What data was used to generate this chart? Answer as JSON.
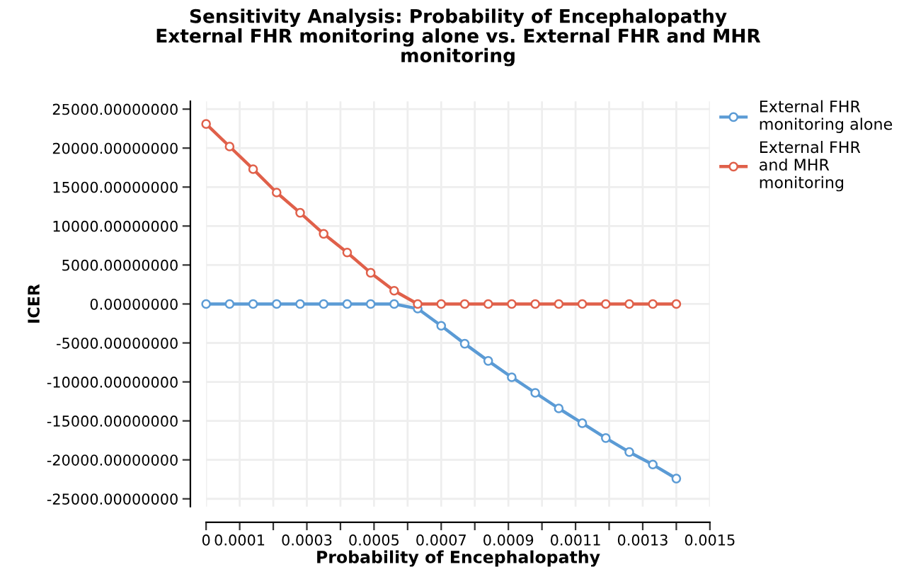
{
  "chart_data": {
    "type": "line",
    "title": "Sensitivity Analysis: Probability of Encephalopathy\nExternal FHR monitoring alone vs. External FHR and MHR\nmonitoring",
    "xlabel": "Probability of Encephalopathy",
    "ylabel": "ICER",
    "x": [
      0,
      7e-05,
      0.00014,
      0.00021,
      0.00028,
      0.00035,
      0.00042,
      0.00049,
      0.00056,
      0.00063,
      0.0007,
      0.00077,
      0.00084,
      0.00091,
      0.00098,
      0.00105,
      0.00112,
      0.00119,
      0.00126,
      0.00133,
      0.0014
    ],
    "series": [
      {
        "name": "External FHR\nmonitoring alone",
        "color": "#5b9bd5",
        "values": [
          0,
          0,
          0,
          0,
          0,
          0,
          0,
          0,
          0,
          -600,
          -2800,
          -5100,
          -7300,
          -9400,
          -11400,
          -13400,
          -15300,
          -17200,
          -19000,
          -20600,
          -22400
        ]
      },
      {
        "name": "External FHR\nand MHR\nmonitoring",
        "color": "#e0604a",
        "values": [
          23100,
          20200,
          17300,
          14300,
          11700,
          9000,
          6600,
          4000,
          1700,
          0,
          0,
          0,
          0,
          0,
          0,
          0,
          0,
          0,
          0,
          0,
          0
        ]
      }
    ],
    "xlim": [
      0,
      0.0015
    ],
    "xticks": [
      {
        "value": 0,
        "label": "0"
      },
      {
        "value": 0.0001,
        "label": "0.0001"
      },
      {
        "value": 0.0002,
        "label": null
      },
      {
        "value": 0.0003,
        "label": "0.0003"
      },
      {
        "value": 0.0004,
        "label": null
      },
      {
        "value": 0.0005,
        "label": "0.0005"
      },
      {
        "value": 0.0006,
        "label": null
      },
      {
        "value": 0.0007,
        "label": "0.0007"
      },
      {
        "value": 0.0008,
        "label": null
      },
      {
        "value": 0.0009,
        "label": "0.0009"
      },
      {
        "value": 0.001,
        "label": null
      },
      {
        "value": 0.0011,
        "label": "0.0011"
      },
      {
        "value": 0.0012,
        "label": null
      },
      {
        "value": 0.0013,
        "label": "0.0013"
      },
      {
        "value": 0.0014,
        "label": null
      },
      {
        "value": 0.0015,
        "label": "0.0015"
      }
    ],
    "ylim": [
      -26000,
      26000
    ],
    "yticks": [
      {
        "value": 25000,
        "label": "25000.00000000"
      },
      {
        "value": 20000,
        "label": "20000.00000000"
      },
      {
        "value": 15000,
        "label": "15000.00000000"
      },
      {
        "value": 10000,
        "label": "10000.00000000"
      },
      {
        "value": 5000,
        "label": "5000.00000000"
      },
      {
        "value": 0,
        "label": "0.00000000"
      },
      {
        "value": -5000,
        "label": "-5000.00000000"
      },
      {
        "value": -10000,
        "label": "-10000.00000000"
      },
      {
        "value": -15000,
        "label": "-15000.00000000"
      },
      {
        "value": -20000,
        "label": "-20000.00000000"
      },
      {
        "value": -25000,
        "label": "-25000.00000000"
      }
    ],
    "grid": true,
    "legend": "top right",
    "marker": "circle",
    "line_style": "solid"
  }
}
